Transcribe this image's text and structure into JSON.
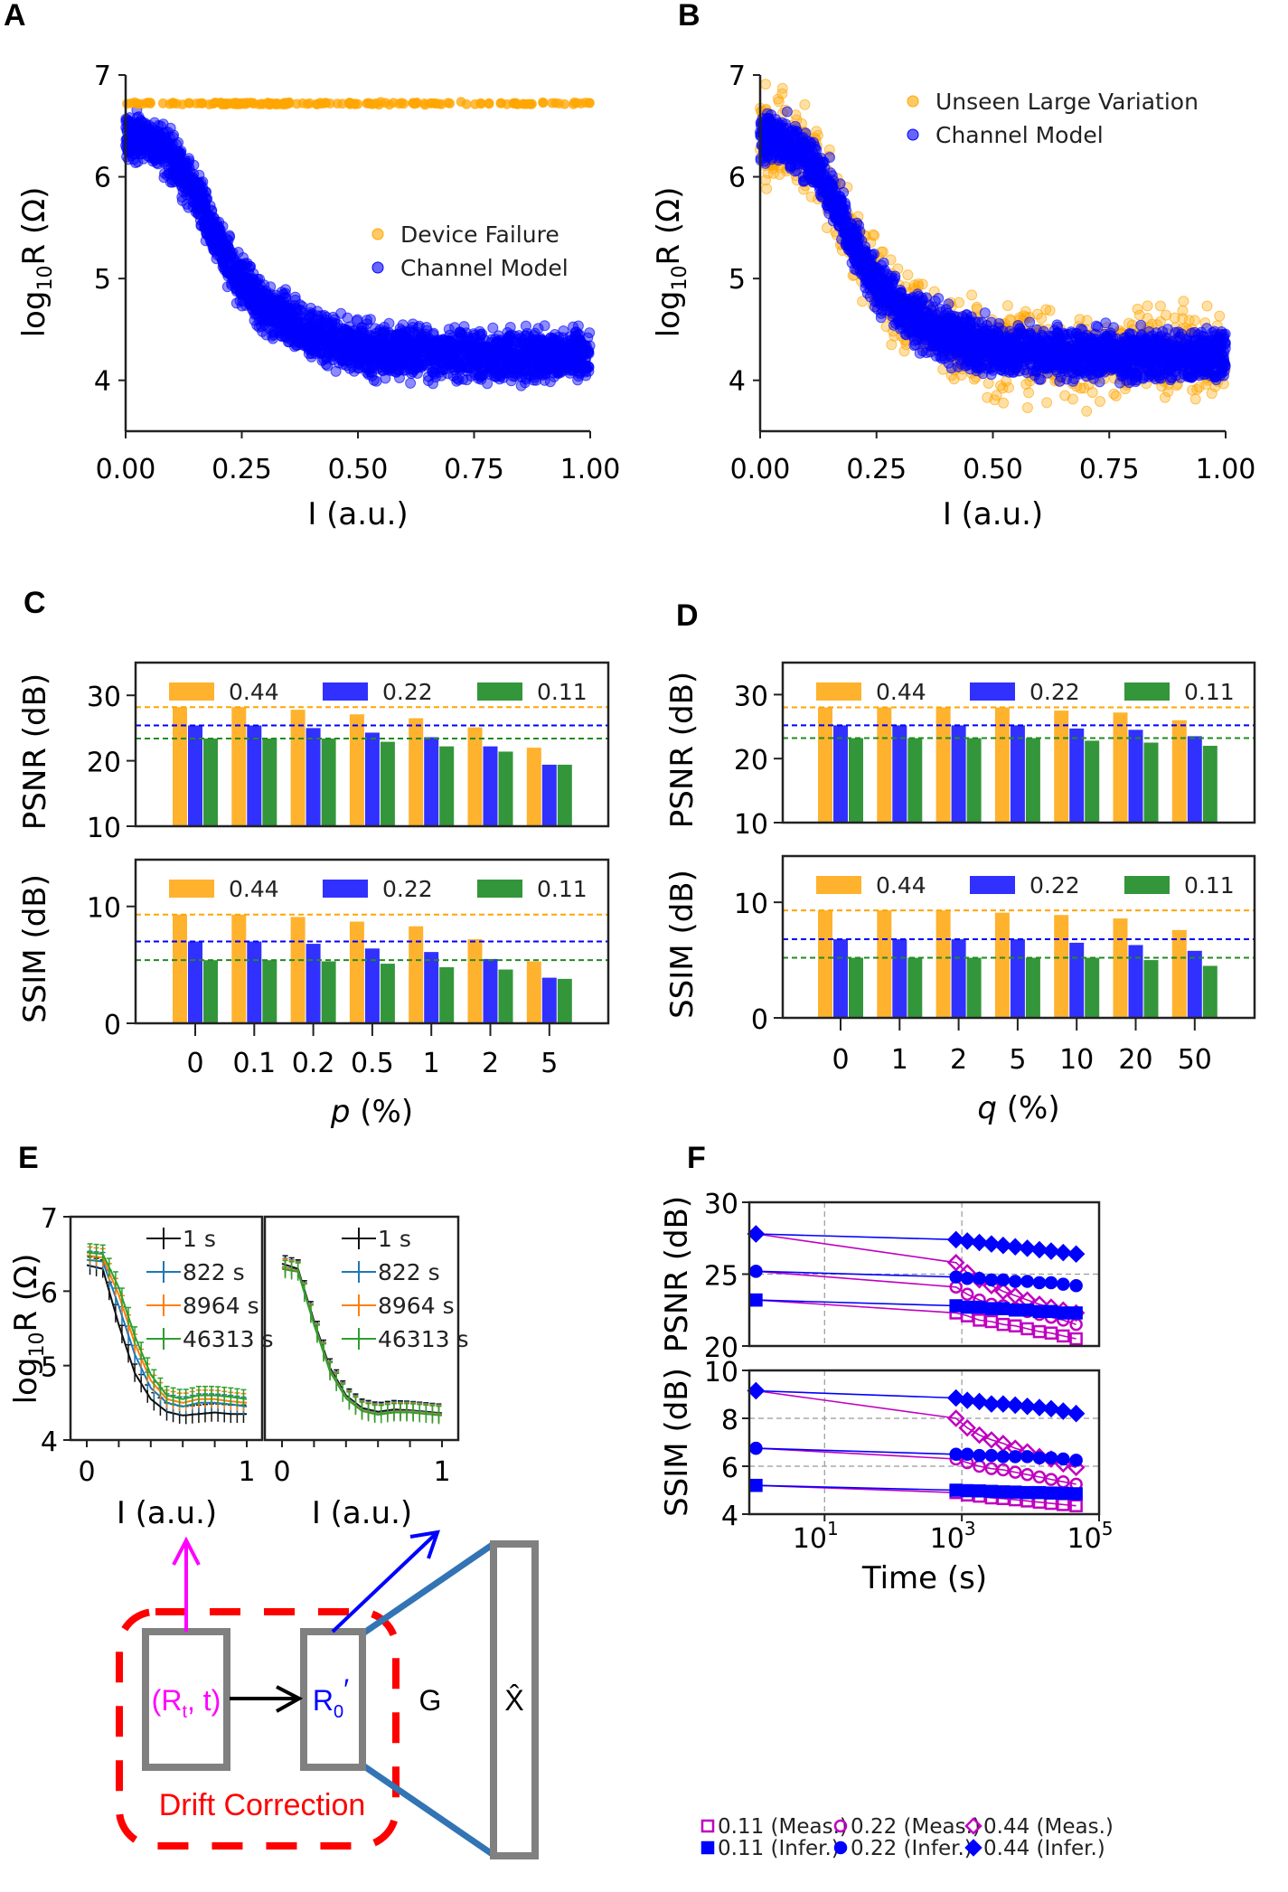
{
  "panel_labels": {
    "A": "A",
    "B": "B",
    "C": "C",
    "D": "D",
    "E": "E",
    "F": "F"
  },
  "diagram": {
    "input_label": "(R",
    "input_sub": "t",
    "input_suffix": ", t)",
    "corrected_label": "R",
    "corrected_sub": "0",
    "corrected_prime": "′",
    "generator_label": "G",
    "output_label": "X̂",
    "group_label": "Drift Correction",
    "colors": {
      "input": "#ff00ff",
      "corrected": "#0000ff",
      "group": "#ff0000",
      "boxes": "#808080",
      "links": "#3274b4"
    }
  },
  "chart_data": [
    {
      "id": "A",
      "type": "scatter",
      "xlabel": "I (a.u.)",
      "ylabel": {
        "prefix": "log",
        "sub": "10",
        "suffix": "R (Ω)"
      },
      "xlim": [
        0,
        1
      ],
      "ylim": [
        3.5,
        7
      ],
      "xticks": [
        "0.00",
        "0.25",
        "0.50",
        "0.75",
        "1.00"
      ],
      "yticks": [
        "4",
        "5",
        "6",
        "7"
      ],
      "legend": "center-right",
      "series": [
        {
          "name": "Device Failure",
          "color": "#ffa500",
          "trend": {
            "x": [
              0,
              1
            ],
            "y": [
              6.72,
              6.72
            ]
          },
          "spread": 0.02
        },
        {
          "name": "Channel Model",
          "color": "#0000ff",
          "trend": {
            "x": [
              0,
              0.05,
              0.1,
              0.15,
              0.2,
              0.25,
              0.3,
              0.4,
              0.5,
              0.6,
              0.75,
              1
            ],
            "y": [
              6.4,
              6.35,
              6.2,
              5.85,
              5.35,
              4.95,
              4.7,
              4.45,
              4.3,
              4.28,
              4.25,
              4.25
            ]
          },
          "spread": 0.35
        }
      ]
    },
    {
      "id": "B",
      "type": "scatter",
      "xlabel": "I (a.u.)",
      "ylabel": {
        "prefix": "log",
        "sub": "10",
        "suffix": "R (Ω)"
      },
      "xlim": [
        0,
        1
      ],
      "ylim": [
        3.5,
        7
      ],
      "xticks": [
        "0.00",
        "0.25",
        "0.50",
        "0.75",
        "1.00"
      ],
      "yticks": [
        "4",
        "5",
        "6",
        "7"
      ],
      "legend": "top-right",
      "series": [
        {
          "name": "Unseen Large Variation",
          "color": "#ffa500",
          "trend": {
            "x": [
              0,
              0.05,
              0.1,
              0.15,
              0.2,
              0.25,
              0.3,
              0.4,
              0.5,
              0.6,
              0.75,
              1
            ],
            "y": [
              6.4,
              6.35,
              6.2,
              5.85,
              5.35,
              4.95,
              4.7,
              4.45,
              4.3,
              4.28,
              4.25,
              4.25
            ]
          },
          "spread": 0.6
        },
        {
          "name": "Channel Model",
          "color": "#0000ff",
          "trend": {
            "x": [
              0,
              0.05,
              0.1,
              0.15,
              0.2,
              0.25,
              0.3,
              0.4,
              0.5,
              0.6,
              0.75,
              1
            ],
            "y": [
              6.4,
              6.35,
              6.2,
              5.85,
              5.35,
              4.95,
              4.7,
              4.45,
              4.3,
              4.28,
              4.25,
              4.25
            ]
          },
          "spread": 0.35
        }
      ]
    },
    {
      "id": "C",
      "type": "bar",
      "xlabel": {
        "var": "p",
        "unit": " (%)"
      },
      "categories": [
        "0",
        "0.1",
        "0.2",
        "0.5",
        "1",
        "2",
        "5"
      ],
      "legend": "top",
      "panels": [
        {
          "ylabel": "PSNR (dB)",
          "ylim": [
            10,
            35
          ],
          "yticks": [
            "10",
            "20",
            "30"
          ],
          "baselines": [
            28.2,
            25.4,
            23.4
          ],
          "series": [
            {
              "name": "0.44",
              "color": "#ffb22e",
              "values": [
                28.2,
                28.2,
                27.8,
                27.1,
                26.5,
                25.1,
                22.0
              ]
            },
            {
              "name": "0.22",
              "color": "#3030ff",
              "values": [
                25.4,
                25.4,
                25.0,
                24.3,
                23.6,
                22.2,
                19.4
              ]
            },
            {
              "name": "0.11",
              "color": "#33963a",
              "values": [
                23.4,
                23.4,
                23.4,
                22.9,
                22.2,
                21.4,
                19.4
              ]
            }
          ]
        },
        {
          "ylabel": "SSIM (dB)",
          "ylim": [
            0,
            14
          ],
          "yticks": [
            "0",
            "10"
          ],
          "baselines": [
            9.3,
            7.0,
            5.4
          ],
          "series": [
            {
              "name": "0.44",
              "color": "#ffb22e",
              "values": [
                9.3,
                9.3,
                9.1,
                8.7,
                8.3,
                7.2,
                5.3
              ]
            },
            {
              "name": "0.22",
              "color": "#3030ff",
              "values": [
                7.0,
                7.0,
                6.8,
                6.4,
                6.1,
                5.5,
                3.9
              ]
            },
            {
              "name": "0.11",
              "color": "#33963a",
              "values": [
                5.4,
                5.4,
                5.3,
                5.1,
                4.8,
                4.6,
                3.8
              ]
            }
          ]
        }
      ]
    },
    {
      "id": "D",
      "type": "bar",
      "xlabel": {
        "var": "q",
        "unit": " (%)"
      },
      "categories": [
        "0",
        "1",
        "2",
        "5",
        "10",
        "20",
        "50"
      ],
      "legend": "top",
      "panels": [
        {
          "ylabel": "PSNR (dB)",
          "ylim": [
            10,
            35
          ],
          "yticks": [
            "10",
            "20",
            "30"
          ],
          "baselines": [
            28.0,
            25.2,
            23.2
          ],
          "series": [
            {
              "name": "0.44",
              "color": "#ffb22e",
              "values": [
                28.0,
                28.0,
                28.0,
                28.0,
                27.5,
                27.2,
                26.0
              ]
            },
            {
              "name": "0.22",
              "color": "#3030ff",
              "values": [
                25.2,
                25.2,
                25.2,
                25.2,
                24.7,
                24.5,
                23.5
              ]
            },
            {
              "name": "0.11",
              "color": "#33963a",
              "values": [
                23.2,
                23.2,
                23.2,
                23.2,
                22.8,
                22.5,
                22.0
              ]
            }
          ]
        },
        {
          "ylabel": "SSIM (dB)",
          "ylim": [
            0,
            14
          ],
          "yticks": [
            "0",
            "10"
          ],
          "baselines": [
            9.3,
            6.8,
            5.2
          ],
          "series": [
            {
              "name": "0.44",
              "color": "#ffb22e",
              "values": [
                9.3,
                9.3,
                9.3,
                9.1,
                8.9,
                8.6,
                7.6
              ]
            },
            {
              "name": "0.22",
              "color": "#3030ff",
              "values": [
                6.8,
                6.8,
                6.8,
                6.8,
                6.5,
                6.3,
                5.8
              ]
            },
            {
              "name": "0.11",
              "color": "#33963a",
              "values": [
                5.2,
                5.2,
                5.2,
                5.2,
                5.2,
                5.0,
                4.5
              ]
            }
          ]
        }
      ]
    },
    {
      "id": "E",
      "type": "line",
      "xlabel": "I (a.u.)",
      "ylabel": {
        "prefix": "log",
        "sub": "10",
        "suffix": "R (Ω)"
      },
      "xlim": [
        0,
        1
      ],
      "ylim": [
        4,
        7
      ],
      "xticks": [
        "0",
        "1"
      ],
      "yticks": [
        "4",
        "5",
        "6",
        "7"
      ],
      "legend": "top-right",
      "x": [
        0,
        0.1,
        0.2,
        0.3,
        0.4,
        0.5,
        0.6,
        0.7,
        0.8,
        0.9,
        1
      ],
      "error": 0.12,
      "panels": [
        {
          "series": [
            {
              "name": "1 s",
              "color": "#111111",
              "values": [
                6.35,
                6.3,
                5.55,
                4.9,
                4.55,
                4.38,
                4.33,
                4.35,
                4.37,
                4.35,
                4.35
              ]
            },
            {
              "name": "822 s",
              "color": "#1f77b4",
              "values": [
                6.42,
                6.4,
                5.8,
                5.15,
                4.7,
                4.5,
                4.45,
                4.5,
                4.5,
                4.48,
                4.45
              ]
            },
            {
              "name": "8964 s",
              "color": "#ff7f0e",
              "values": [
                6.48,
                6.45,
                5.95,
                5.3,
                4.8,
                4.55,
                4.5,
                4.55,
                4.55,
                4.52,
                4.5
              ]
            },
            {
              "name": "46313 s",
              "color": "#2ca02c",
              "values": [
                6.52,
                6.5,
                6.05,
                5.4,
                4.88,
                4.6,
                4.55,
                4.6,
                4.6,
                4.58,
                4.55
              ]
            }
          ]
        },
        {
          "series": [
            {
              "name": "1 s",
              "color": "#111111",
              "values": [
                6.37,
                6.3,
                5.6,
                4.97,
                4.6,
                4.43,
                4.38,
                4.41,
                4.4,
                4.38,
                4.36
              ]
            },
            {
              "name": "822 s",
              "color": "#1f77b4",
              "values": [
                6.33,
                6.28,
                5.57,
                4.94,
                4.58,
                4.41,
                4.36,
                4.39,
                4.39,
                4.37,
                4.35
              ]
            },
            {
              "name": "8964 s",
              "color": "#ff7f0e",
              "values": [
                6.32,
                6.27,
                5.56,
                4.93,
                4.57,
                4.4,
                4.35,
                4.38,
                4.38,
                4.36,
                4.34
              ]
            },
            {
              "name": "46313 s",
              "color": "#2ca02c",
              "values": [
                6.3,
                6.26,
                5.55,
                4.92,
                4.56,
                4.39,
                4.34,
                4.37,
                4.37,
                4.35,
                4.33
              ]
            }
          ]
        }
      ]
    },
    {
      "id": "F",
      "type": "line",
      "xlabel": "Time (s)",
      "xscale": "log",
      "xlim": [
        0.8,
        100000
      ],
      "xticks": [
        {
          "base": "10",
          "exp": "1"
        },
        {
          "base": "10",
          "exp": "3"
        },
        {
          "base": "10",
          "exp": "5"
        }
      ],
      "grid": "dashed",
      "legend": "bottom",
      "x": [
        1,
        822,
        1200,
        1800,
        2700,
        4000,
        6000,
        9000,
        13500,
        20000,
        30000,
        46313
      ],
      "panels": [
        {
          "ylabel": "PSNR (dB)",
          "ylim": [
            20,
            30
          ],
          "yticks": [
            "20",
            "25",
            "30"
          ],
          "ygrid": [
            25
          ],
          "series": [
            {
              "name": "0.11 (Meas.)",
              "marker": "square",
              "filled": false,
              "color": "#c000c0",
              "values": [
                23.2,
                22.3,
                22.1,
                21.8,
                21.7,
                21.5,
                21.4,
                21.2,
                21.0,
                20.9,
                20.7,
                20.5
              ]
            },
            {
              "name": "0.22 (Meas.)",
              "marker": "circle",
              "filled": false,
              "color": "#c000c0",
              "values": [
                25.2,
                24.1,
                23.6,
                23.2,
                22.9,
                22.8,
                22.6,
                22.4,
                22.2,
                22.0,
                21.8,
                21.5
              ]
            },
            {
              "name": "0.44 (Meas.)",
              "marker": "diamond",
              "filled": false,
              "color": "#c000c0",
              "values": [
                27.8,
                25.8,
                25.1,
                24.6,
                24.2,
                23.8,
                23.5,
                23.2,
                22.9,
                22.7,
                22.5,
                22.3
              ]
            },
            {
              "name": "0.11 (Infer.)",
              "marker": "square",
              "filled": true,
              "color": "#0000ff",
              "values": [
                23.2,
                22.8,
                22.7,
                22.7,
                22.6,
                22.6,
                22.5,
                22.5,
                22.4,
                22.4,
                22.3,
                22.3
              ]
            },
            {
              "name": "0.22 (Infer.)",
              "marker": "circle",
              "filled": true,
              "color": "#0000ff",
              "values": [
                25.2,
                24.8,
                24.7,
                24.7,
                24.6,
                24.6,
                24.5,
                24.5,
                24.4,
                24.4,
                24.3,
                24.2
              ]
            },
            {
              "name": "0.44 (Infer.)",
              "marker": "diamond",
              "filled": true,
              "color": "#0000ff",
              "values": [
                27.8,
                27.4,
                27.3,
                27.2,
                27.1,
                27.0,
                26.9,
                26.8,
                26.7,
                26.6,
                26.5,
                26.4
              ]
            }
          ]
        },
        {
          "ylabel": "SSIM (dB)",
          "ylim": [
            4,
            10
          ],
          "yticks": [
            "4",
            "6",
            "8",
            "10"
          ],
          "ygrid": [
            6,
            8
          ],
          "series": [
            {
              "name": "0.11 (Meas.)",
              "marker": "square",
              "filled": false,
              "color": "#c000c0",
              "values": [
                5.2,
                4.9,
                4.8,
                4.75,
                4.68,
                4.65,
                4.6,
                4.55,
                4.5,
                4.45,
                4.4,
                4.35
              ]
            },
            {
              "name": "0.22 (Meas.)",
              "marker": "circle",
              "filled": false,
              "color": "#c000c0",
              "values": [
                6.75,
                6.3,
                6.15,
                6.0,
                5.9,
                5.85,
                5.75,
                5.65,
                5.55,
                5.45,
                5.35,
                5.25
              ]
            },
            {
              "name": "0.44 (Meas.)",
              "marker": "diamond",
              "filled": false,
              "color": "#c000c0",
              "values": [
                9.15,
                8.0,
                7.6,
                7.3,
                7.1,
                6.95,
                6.75,
                6.6,
                6.4,
                6.3,
                6.1,
                5.95
              ]
            },
            {
              "name": "0.11 (Infer.)",
              "marker": "square",
              "filled": true,
              "color": "#0000ff",
              "values": [
                5.2,
                5.0,
                4.98,
                4.97,
                4.95,
                4.93,
                4.92,
                4.9,
                4.9,
                4.88,
                4.87,
                4.85
              ]
            },
            {
              "name": "0.22 (Infer.)",
              "marker": "circle",
              "filled": true,
              "color": "#0000ff",
              "values": [
                6.75,
                6.5,
                6.5,
                6.45,
                6.45,
                6.4,
                6.4,
                6.4,
                6.35,
                6.35,
                6.3,
                6.25
              ]
            },
            {
              "name": "0.44 (Infer.)",
              "marker": "diamond",
              "filled": true,
              "color": "#0000ff",
              "values": [
                9.15,
                8.85,
                8.75,
                8.7,
                8.6,
                8.6,
                8.55,
                8.5,
                8.45,
                8.4,
                8.3,
                8.2
              ]
            }
          ]
        }
      ]
    }
  ]
}
